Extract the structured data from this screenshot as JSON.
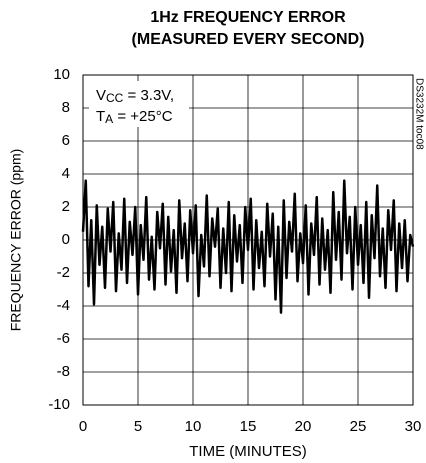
{
  "chart_data": {
    "type": "line",
    "title": "1Hz FREQUENCY ERROR",
    "subtitle": "(MEASURED EVERY SECOND)",
    "x_label": "TIME (MINUTES)",
    "y_label": "FREQUENCY ERROR (ppm)",
    "side_note": "DS3232M toc08",
    "annotation": [
      {
        "text": "V",
        "sub": "CC",
        "rest": " = 3.3V,"
      },
      {
        "text": "T",
        "sub": "A",
        "rest": " = +25°C"
      }
    ],
    "color": "#000000",
    "grid": true,
    "xlim": [
      0,
      30
    ],
    "xticks": [
      0,
      5,
      10,
      15,
      20,
      25,
      30
    ],
    "ylim": [
      -10,
      10
    ],
    "yticks": [
      -10,
      -8,
      -6,
      -4,
      -2,
      0,
      2,
      4,
      6,
      8,
      10
    ],
    "x": [
      0,
      0.25,
      0.5,
      0.75,
      1,
      1.25,
      1.5,
      1.75,
      2,
      2.25,
      2.5,
      2.75,
      3,
      3.25,
      3.5,
      3.75,
      4,
      4.25,
      4.5,
      4.75,
      5,
      5.25,
      5.5,
      5.75,
      6,
      6.25,
      6.5,
      6.75,
      7,
      7.25,
      7.5,
      7.75,
      8,
      8.25,
      8.5,
      8.75,
      9,
      9.25,
      9.5,
      9.75,
      10,
      10.25,
      10.5,
      10.75,
      11,
      11.25,
      11.5,
      11.75,
      12,
      12.25,
      12.5,
      12.75,
      13,
      13.25,
      13.5,
      13.75,
      14,
      14.25,
      14.5,
      14.75,
      15,
      15.25,
      15.5,
      15.75,
      16,
      16.25,
      16.5,
      16.75,
      17,
      17.25,
      17.5,
      17.75,
      18,
      18.25,
      18.5,
      18.75,
      19,
      19.25,
      19.5,
      19.75,
      20,
      20.25,
      20.5,
      20.75,
      21,
      21.25,
      21.5,
      21.75,
      22,
      22.25,
      22.5,
      22.75,
      23,
      23.25,
      23.5,
      23.75,
      24,
      24.25,
      24.5,
      24.75,
      25,
      25.25,
      25.5,
      25.75,
      26,
      26.25,
      26.5,
      26.75,
      27,
      27.25,
      27.5,
      27.75,
      28,
      28.25,
      28.5,
      28.75,
      29,
      29.25,
      29.5,
      29.75,
      30
    ],
    "values": [
      0.5,
      3.6,
      -2.8,
      1.2,
      -3.9,
      2.1,
      -1.5,
      0.8,
      -2.9,
      1.9,
      -0.7,
      2.3,
      -3.1,
      0.4,
      -1.8,
      2.5,
      -2.6,
      1.1,
      -0.9,
      2.0,
      -3.3,
      0.9,
      -1.2,
      2.6,
      -2.4,
      0.2,
      -3.0,
      1.7,
      -0.5,
      2.2,
      -2.7,
      1.4,
      -1.9,
      0.6,
      -3.2,
      2.4,
      -1.1,
      1.0,
      -2.5,
      1.8,
      -0.8,
      2.1,
      -3.4,
      0.3,
      -1.6,
      2.7,
      -2.2,
      1.3,
      -0.4,
      1.9,
      -2.9,
      0.7,
      -2.0,
      2.3,
      -3.1,
      1.5,
      -1.3,
      0.9,
      -2.6,
      2.0,
      -0.6,
      2.5,
      -3.0,
      1.2,
      -1.7,
      0.5,
      -2.8,
      2.2,
      -1.0,
      1.6,
      -3.6,
      0.8,
      -4.4,
      2.4,
      -2.3,
      1.1,
      -0.7,
      2.8,
      -2.5,
      0.4,
      -1.4,
      2.1,
      -3.3,
      1.0,
      -0.9,
      2.6,
      -2.7,
      1.3,
      -1.8,
      0.6,
      -3.2,
      2.9,
      -1.2,
      1.7,
      -2.4,
      3.6,
      -0.8,
      1.4,
      -3.0,
      2.0,
      -1.5,
      0.9,
      -2.6,
      2.3,
      -3.5,
      1.5,
      -1.1,
      3.3,
      -2.2,
      0.7,
      -2.9,
      1.8,
      -0.6,
      2.4,
      -3.1,
      1.0,
      -1.7,
      1.2,
      -2.5,
      0.3,
      -0.4
    ]
  }
}
